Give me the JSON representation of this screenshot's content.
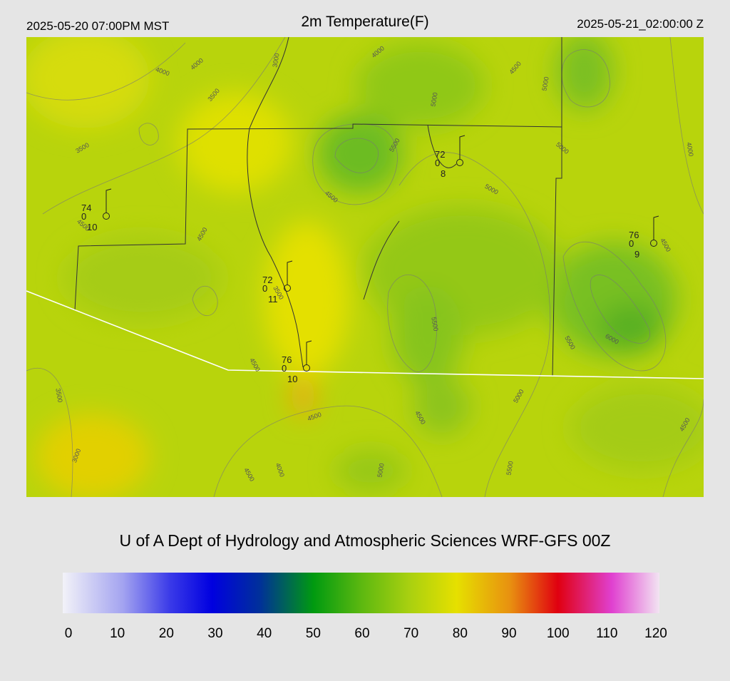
{
  "header": {
    "left": "2025-05-20 07:00PM MST",
    "title": "2m Temperature(F)",
    "right": "2025-05-21_02:00:00 Z"
  },
  "credit": "U of A Dept of Hydrology and Atmospheric Sciences WRF-GFS 00Z",
  "colorbar": {
    "lim": [
      0,
      120
    ],
    "ticks": [
      0,
      10,
      20,
      30,
      40,
      50,
      60,
      70,
      80,
      90,
      100,
      110,
      120
    ]
  },
  "stations": [
    {
      "temp": 74,
      "left": 0,
      "right": 10
    },
    {
      "temp": 72,
      "left": 0,
      "right": 8
    },
    {
      "temp": 72,
      "left": 0,
      "right": 11
    },
    {
      "temp": 76,
      "left": 0,
      "right": 10
    },
    {
      "temp": 76,
      "left": 0,
      "right": 9
    }
  ],
  "contour_labels": [
    4000,
    4000,
    3000,
    3500,
    4000,
    4500,
    5000,
    5000,
    5500,
    5000,
    5000,
    3500,
    4000,
    4500,
    4500,
    4500,
    4500,
    3500,
    5500,
    5500,
    6000,
    4500,
    3500,
    5000,
    4500,
    4500,
    4500,
    3000,
    4000,
    4500,
    5000,
    5500
  ]
}
